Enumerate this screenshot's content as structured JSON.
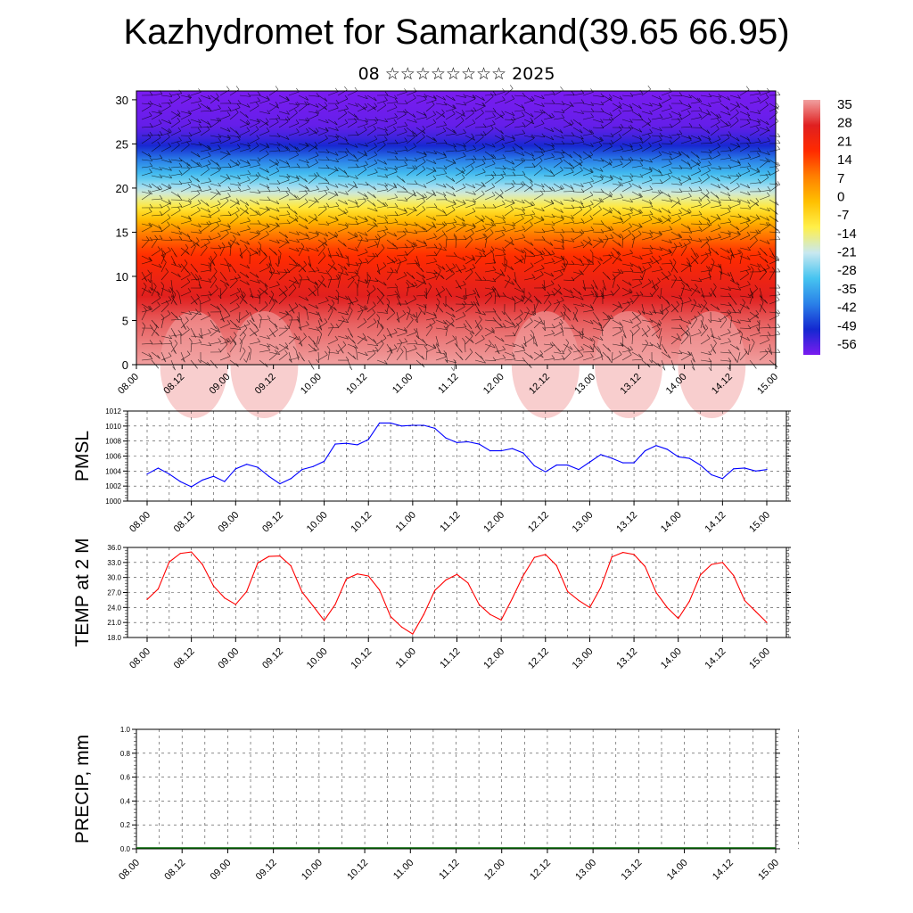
{
  "title": "Kazhydromet for Samarkand(39.65 66.95)",
  "subtitle": "08 ☆☆☆☆☆☆☆☆ 2025",
  "time_labels": [
    "08.00",
    "08.12",
    "09.00",
    "09.12",
    "10.00",
    "10.12",
    "11.00",
    "11.12",
    "12.00",
    "12.12",
    "13.00",
    "13.12",
    "14.00",
    "14.12",
    "15.00"
  ],
  "chart_data": [
    {
      "type": "heatmap",
      "name": "vertical-section",
      "ylim": [
        0,
        31
      ],
      "yticks": [
        "0",
        "5",
        "10",
        "15",
        "20",
        "25",
        "30"
      ],
      "colorbar_labels": [
        "35",
        "28",
        "21",
        "14",
        "7",
        "0",
        "-7",
        "-14",
        "-21",
        "-28",
        "-35",
        "-42",
        "-49",
        "-56"
      ],
      "colormap": [
        "#f0a0a0",
        "#e02020",
        "#ff2a00",
        "#ff7f00",
        "#ffc000",
        "#fff04a",
        "#c8e8f0",
        "#46c4f0",
        "#2a80e8",
        "#1428d0",
        "#7a1cf0"
      ],
      "temperature_profile": {
        "z": [
          0,
          5,
          10,
          13,
          15,
          17,
          20,
          23,
          25,
          27,
          31
        ],
        "t": [
          35,
          30,
          21,
          14,
          6,
          -6,
          -24,
          -40,
          -52,
          -58,
          -60
        ]
      },
      "wind_barbs": true
    },
    {
      "type": "line",
      "name": "pmsl",
      "ylabel": "PMSL",
      "ylim": [
        1000,
        1012
      ],
      "yticks": [
        "1000",
        "1002",
        "1004",
        "1006",
        "1008",
        "1010",
        "1012"
      ],
      "color": "#0000ff",
      "x_start": 0,
      "x_step": 3,
      "values": [
        1003.6,
        1004.4,
        1003.6,
        1002.6,
        1001.9,
        1002.8,
        1003.3,
        1002.6,
        1004.3,
        1004.9,
        1004.5,
        1003.3,
        1002.3,
        1003.0,
        1004.2,
        1004.6,
        1005.3,
        1007.6,
        1007.7,
        1007.5,
        1008.2,
        1010.4,
        1010.4,
        1010.0,
        1010.1,
        1010.1,
        1009.7,
        1008.4,
        1007.8,
        1007.9,
        1007.6,
        1006.7,
        1006.7,
        1007.0,
        1006.4,
        1004.7,
        1003.9,
        1004.8,
        1004.8,
        1004.2,
        1005.2,
        1006.2,
        1005.7,
        1005.1,
        1005.1,
        1006.7,
        1007.4,
        1006.9,
        1005.9,
        1005.7,
        1004.8,
        1003.5,
        1003.0,
        1004.3,
        1004.4,
        1004.0,
        1004.2
      ],
      "grid": true
    },
    {
      "type": "line",
      "name": "temp-2m",
      "ylabel": "TEMP at 2 M",
      "ylim": [
        18,
        36
      ],
      "yticks": [
        "18.0",
        "21.0",
        "24.0",
        "27.0",
        "30.0",
        "33.0",
        "36.0"
      ],
      "color": "#ff0000",
      "x_start": 0,
      "x_step": 3,
      "values": [
        25.6,
        27.7,
        33.1,
        34.8,
        35.1,
        32.6,
        28.3,
        25.9,
        24.6,
        27.2,
        32.9,
        34.2,
        34.3,
        32.3,
        27.1,
        24.3,
        21.4,
        24.6,
        29.7,
        30.7,
        30.3,
        27.5,
        22.2,
        20.1,
        18.7,
        22.6,
        27.4,
        29.5,
        30.6,
        28.9,
        24.6,
        22.6,
        21.5,
        25.8,
        30.4,
        34.0,
        34.6,
        32.4,
        27.2,
        25.4,
        24.0,
        28.0,
        34.1,
        35.0,
        34.6,
        32.2,
        27.0,
        24.0,
        21.8,
        25.2,
        30.5,
        32.6,
        33.0,
        30.4,
        25.4,
        23.2,
        21.0
      ],
      "grid": true
    },
    {
      "type": "bar",
      "name": "precip",
      "ylabel": "PRECIP, mm",
      "ylim": [
        0,
        1
      ],
      "yticks": [
        "0.0",
        "0.2",
        "0.4",
        "0.6",
        "0.8",
        "1.0"
      ],
      "color": "#006400",
      "values": [],
      "grid": true
    }
  ]
}
